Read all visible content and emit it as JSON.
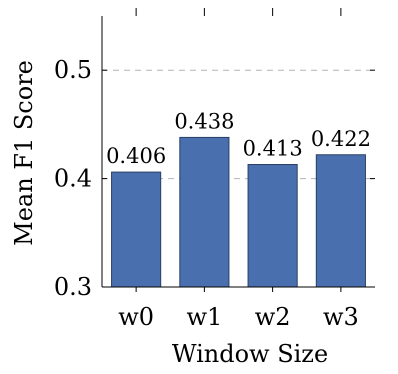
{
  "chart_data": {
    "type": "bar",
    "categories": [
      "w0",
      "w1",
      "w2",
      "w3"
    ],
    "values": [
      0.406,
      0.438,
      0.413,
      0.422
    ],
    "data_labels": [
      "0.406",
      "0.438",
      "0.413",
      "0.422"
    ],
    "title": "",
    "xlabel": "Window Size",
    "ylabel": "Mean F1 Score",
    "ylim": [
      0.3,
      0.55
    ],
    "yticks": [
      0.3,
      0.4,
      0.5
    ],
    "ytick_labels": [
      "0.3",
      "0.4",
      "0.5"
    ],
    "grid": "y-dashed",
    "bar_color": "#4a6fae",
    "bar_edge_color": "#2a3f66",
    "grid_color": "#b3b3b3"
  }
}
